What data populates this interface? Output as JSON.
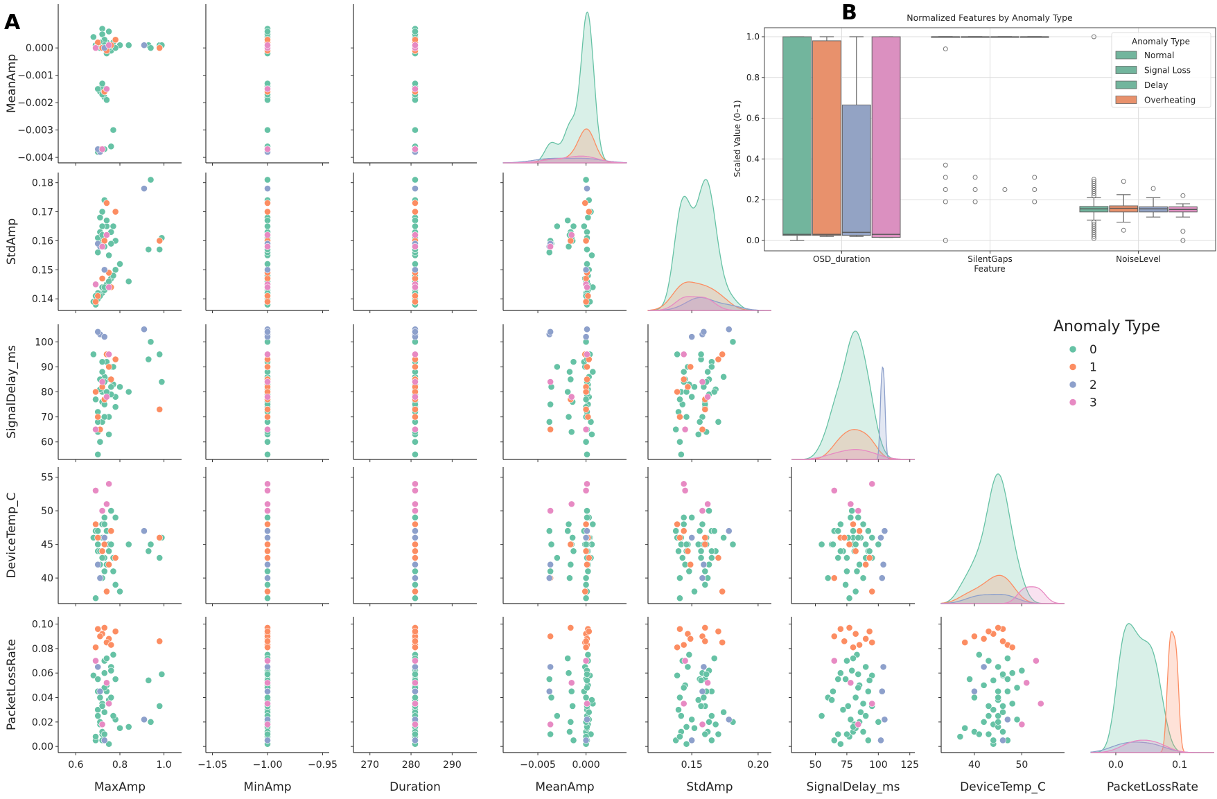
{
  "chart_data": [
    {
      "type": "scatter",
      "panel_label": "A",
      "kind": "pairplot (lower triangle, KDE on diagonal)",
      "x_variables": [
        "MaxAmp",
        "MinAmp",
        "Duration",
        "MeanAmp",
        "StdAmp",
        "SignalDelay_ms",
        "DeviceTemp_C",
        "PacketLossRate"
      ],
      "y_variables": [
        "MeanAmp",
        "StdAmp",
        "SignalDelay_ms",
        "DeviceTemp_C",
        "PacketLossRate"
      ],
      "legend": {
        "title": "Anomaly Type",
        "levels": [
          "0",
          "1",
          "2",
          "3"
        ],
        "placement": "right"
      },
      "colors": {
        "0": "#66c2a5",
        "1": "#fc8d62",
        "2": "#8da0cb",
        "3": "#e78ac3"
      },
      "axes": {
        "MaxAmp": {
          "lim": [
            0.52,
            1.08
          ],
          "ticks": [
            0.6,
            0.8,
            1.0
          ],
          "tick_labels": [
            "0.6",
            "0.8",
            "1.0"
          ]
        },
        "MinAmp": {
          "lim": [
            -1.056,
            -0.944
          ],
          "ticks": [
            -1.05,
            -1.0,
            -0.95
          ],
          "tick_labels": [
            "−1.05",
            "−1.00",
            "−0.95"
          ]
        },
        "Duration": {
          "lim": [
            266,
            296
          ],
          "ticks": [
            270,
            280,
            290
          ],
          "tick_labels": [
            "270",
            "280",
            "290"
          ]
        },
        "MeanAmp": {
          "lim": [
            -0.0086,
            0.0042
          ],
          "ylim": [
            -0.0042,
            0.0016
          ],
          "ticks": [
            -0.005,
            0.0
          ],
          "tick_labels": [
            "−0.005",
            "0.000"
          ],
          "yticks": [
            0.0,
            -0.001,
            -0.002,
            -0.003,
            -0.004
          ],
          "ytick_labels": [
            "0.000",
            "−0.001",
            "−0.002",
            "−0.003",
            "−0.004"
          ]
        },
        "StdAmp": {
          "lim": [
            0.117,
            0.21
          ],
          "ylim": [
            0.136,
            0.1835
          ],
          "ticks": [
            0.15,
            0.2
          ],
          "tick_labels": [
            "0.15",
            "0.20"
          ],
          "yticks": [
            0.14,
            0.15,
            0.16,
            0.17,
            0.18
          ],
          "ytick_labels": [
            "0.14",
            "0.15",
            "0.16",
            "0.17",
            "0.18"
          ]
        },
        "SignalDelay_ms": {
          "lim": [
            31,
            129
          ],
          "ylim": [
            53,
            107
          ],
          "ticks": [
            50,
            75,
            100,
            125
          ],
          "tick_labels": [
            "50",
            "75",
            "100",
            "125"
          ],
          "yticks": [
            60,
            70,
            80,
            90,
            100
          ],
          "ytick_labels": [
            "60",
            "70",
            "80",
            "90",
            "100"
          ]
        },
        "DeviceTemp_C": {
          "lim": [
            33,
            59
          ],
          "ylim": [
            36.2,
            56.5
          ],
          "ticks": [
            40,
            50
          ],
          "tick_labels": [
            "40",
            "50"
          ],
          "yticks": [
            40,
            45,
            50,
            55
          ],
          "ytick_labels": [
            "40",
            "45",
            "50",
            "55"
          ]
        },
        "PacketLossRate": {
          "lim": [
            -0.039,
            0.154
          ],
          "ylim": [
            -0.005,
            0.106
          ],
          "ticks": [
            0.0,
            0.1
          ],
          "tick_labels": [
            "0.0",
            "0.1"
          ],
          "yticks": [
            0.0,
            0.02,
            0.04,
            0.06,
            0.08,
            0.1
          ],
          "ytick_labels": [
            "0.00",
            "0.02",
            "0.04",
            "0.06",
            "0.08",
            "0.10"
          ]
        }
      },
      "columns": [
        "MaxAmp",
        "MinAmp",
        "Duration",
        "MeanAmp",
        "StdAmp",
        "SignalDelay_ms",
        "DeviceTemp_C",
        "PacketLossRate",
        "AnomalyType"
      ],
      "rows": [
        [
          0.7,
          -1,
          281,
          0.0001,
          0.14,
          72,
          44,
          0.03,
          0
        ],
        [
          0.72,
          -1,
          281,
          0.0,
          0.142,
          80,
          46,
          0.012,
          0
        ],
        [
          0.74,
          -1,
          281,
          0.0002,
          0.145,
          85,
          42,
          0.05,
          0
        ],
        [
          0.69,
          -1,
          281,
          0.0001,
          0.138,
          65,
          47,
          0.005,
          0
        ],
        [
          0.76,
          -1,
          281,
          -0.0001,
          0.147,
          90,
          45,
          0.065,
          0
        ],
        [
          0.78,
          -1,
          281,
          0.0003,
          0.15,
          78,
          49,
          0.022,
          0
        ],
        [
          0.71,
          -1,
          281,
          0.0,
          0.141,
          60,
          40,
          0.04,
          0
        ],
        [
          0.73,
          -1,
          281,
          0.0002,
          0.143,
          75,
          43,
          0.07,
          0
        ],
        [
          0.8,
          -1,
          281,
          0.0001,
          0.152,
          82,
          38,
          0.015,
          0
        ],
        [
          0.68,
          -1,
          281,
          0.0004,
          0.139,
          95,
          46,
          0.058,
          0
        ],
        [
          0.75,
          -1,
          281,
          0.0,
          0.146,
          70,
          44,
          0.002,
          0
        ],
        [
          0.72,
          -1,
          281,
          0.0007,
          0.144,
          88,
          48,
          0.035,
          0
        ],
        [
          0.7,
          -1,
          281,
          0.0001,
          0.142,
          55,
          45,
          0.025,
          0
        ],
        [
          0.77,
          -1,
          281,
          0.0002,
          0.148,
          83,
          41,
          0.075,
          0
        ],
        [
          0.74,
          -1,
          281,
          -0.0002,
          0.165,
          92,
          47,
          0.045,
          0
        ],
        [
          0.72,
          -1,
          281,
          0.0005,
          0.17,
          68,
          43,
          0.01,
          0
        ],
        [
          0.76,
          -1,
          281,
          0.0001,
          0.163,
          79,
          50,
          0.062,
          0
        ],
        [
          0.73,
          -1,
          281,
          0.0003,
          0.174,
          86,
          46,
          0.028,
          0
        ],
        [
          0.78,
          -1,
          281,
          0.0,
          0.16,
          74,
          39,
          0.055,
          0
        ],
        [
          0.71,
          -1,
          281,
          0.0002,
          0.168,
          81,
          44,
          0.018,
          0
        ],
        [
          0.75,
          -1,
          281,
          0.0006,
          0.155,
          63,
          45,
          0.038,
          0
        ],
        [
          0.84,
          -1,
          281,
          0.0001,
          0.146,
          80,
          45,
          0.016,
          0
        ],
        [
          0.69,
          -1,
          281,
          0.0,
          0.141,
          77,
          37,
          0.008,
          0
        ],
        [
          0.73,
          -1,
          281,
          0.0001,
          0.144,
          84,
          49,
          0.048,
          0
        ],
        [
          0.72,
          -1,
          281,
          -0.0014,
          0.16,
          76,
          46,
          0.033,
          0
        ],
        [
          0.71,
          -1,
          281,
          -0.0016,
          0.163,
          85,
          42,
          0.02,
          0
        ],
        [
          0.73,
          -1,
          281,
          -0.0018,
          0.158,
          70,
          48,
          0.06,
          0
        ],
        [
          0.72,
          -1,
          281,
          -0.0013,
          0.165,
          92,
          44,
          0.005,
          0
        ],
        [
          0.7,
          -1,
          281,
          -0.0015,
          0.161,
          64,
          45,
          0.045,
          0
        ],
        [
          0.74,
          -1,
          281,
          -0.0019,
          0.167,
          80,
          47,
          0.072,
          0
        ],
        [
          0.72,
          -1,
          281,
          -0.0017,
          0.162,
          88,
          40,
          0.012,
          0
        ],
        [
          0.76,
          -1,
          281,
          -0.0036,
          0.159,
          82,
          45,
          0.04,
          0
        ],
        [
          0.77,
          -1,
          281,
          -0.003,
          0.165,
          90,
          43,
          0.025,
          0
        ],
        [
          0.7,
          -1,
          281,
          -0.0038,
          0.156,
          68,
          47,
          0.055,
          0
        ],
        [
          0.73,
          -1,
          281,
          -0.0037,
          0.16,
          75,
          41,
          0.01,
          0
        ],
        [
          0.93,
          -1,
          281,
          0.0001,
          0.157,
          93,
          44,
          0.054,
          0
        ],
        [
          0.98,
          -1,
          281,
          0.0001,
          0.157,
          95,
          43,
          0.033,
          0
        ],
        [
          0.99,
          -1,
          281,
          0.0001,
          0.161,
          84,
          46,
          0.059,
          0
        ],
        [
          0.94,
          -1,
          281,
          0.0,
          0.181,
          100,
          45,
          0.02,
          0
        ],
        [
          0.72,
          -1,
          281,
          0.0,
          0.147,
          82,
          44,
          0.092,
          1
        ],
        [
          0.75,
          -1,
          281,
          0.0001,
          0.149,
          90,
          42,
          0.088,
          1
        ],
        [
          0.7,
          -1,
          281,
          0.0002,
          0.141,
          70,
          46,
          0.096,
          1
        ],
        [
          0.74,
          -1,
          281,
          -0.0001,
          0.173,
          95,
          38,
          0.085,
          1
        ],
        [
          0.73,
          -1,
          281,
          -0.0016,
          0.16,
          77,
          45,
          0.097,
          1
        ],
        [
          0.76,
          -1,
          281,
          0.0001,
          0.144,
          85,
          47,
          0.083,
          1
        ],
        [
          0.71,
          -1,
          281,
          -0.0037,
          0.158,
          65,
          40,
          0.09,
          1
        ],
        [
          0.98,
          -1,
          281,
          0.0,
          0.16,
          73,
          46,
          0.086,
          1
        ],
        [
          0.78,
          -1,
          281,
          0.0003,
          0.17,
          93,
          43,
          0.094,
          1
        ],
        [
          0.69,
          -1,
          281,
          0.0,
          0.139,
          80,
          48,
          0.081,
          1
        ],
        [
          0.71,
          -1,
          281,
          -0.0038,
          0.158,
          103,
          40,
          0.045,
          2
        ],
        [
          0.91,
          -1,
          281,
          0.0001,
          0.178,
          105,
          47,
          0.022,
          2
        ],
        [
          0.73,
          -1,
          281,
          0.0,
          0.15,
          102,
          46,
          0.005,
          2
        ],
        [
          0.7,
          -1,
          281,
          -0.0037,
          0.159,
          104,
          42,
          0.065,
          2
        ],
        [
          0.69,
          -1,
          281,
          0.0,
          0.145,
          65,
          53,
          0.07,
          3
        ],
        [
          0.74,
          -1,
          281,
          -0.0015,
          0.162,
          78,
          51,
          0.052,
          3
        ],
        [
          0.72,
          -1,
          281,
          -0.0037,
          0.158,
          84,
          50,
          0.018,
          3
        ],
        [
          0.75,
          -1,
          281,
          0.0001,
          0.144,
          95,
          54,
          0.035,
          3
        ]
      ]
    },
    {
      "type": "box",
      "panel_label": "B",
      "title": "Normalized Features by Anomaly Type",
      "xlabel": "Feature",
      "ylabel": "Scaled Value (0–1)",
      "ylim": [
        -0.05,
        1.05
      ],
      "yticks": [
        0.0,
        0.2,
        0.4,
        0.6,
        0.8,
        1.0
      ],
      "ytick_labels": [
        "0.0",
        "0.2",
        "0.4",
        "0.6",
        "0.8",
        "1.0"
      ],
      "grid": true,
      "categories": [
        "OSD_duration",
        "SilentGaps",
        "NoiseLevel"
      ],
      "legend": {
        "title": "Anomaly Type",
        "placement": "top-right",
        "entries": [
          {
            "label": "Normal",
            "color": "#72b59d"
          },
          {
            "label": "Signal Loss",
            "color": "#72b59d"
          },
          {
            "label": "Delay",
            "color": "#72b59d"
          },
          {
            "label": "Overheating",
            "color": "#e8916c"
          }
        ]
      },
      "series": [
        {
          "color": "#72b59d",
          "stats": [
            {
              "lo": 0.0,
              "q1": 0.025,
              "med": 0.03,
              "q3": 1.0,
              "hi": 1.0,
              "outliers": []
            },
            {
              "lo": 1.0,
              "q1": 1.0,
              "med": 1.0,
              "q3": 1.0,
              "hi": 1.0,
              "outliers": [
                0.94,
                0.37,
                0.31,
                0.25,
                0.19,
                0.0
              ]
            },
            {
              "lo": 0.1,
              "q1": 0.14,
              "med": 0.155,
              "q3": 0.167,
              "hi": 0.21,
              "outliers": [
                1.0,
                0.3,
                0.29,
                0.28,
                0.27,
                0.26,
                0.25,
                0.24,
                0.23,
                0.22,
                0.09,
                0.08,
                0.07,
                0.06,
                0.05,
                0.04,
                0.03,
                0.02,
                0.01
              ]
            }
          ]
        },
        {
          "color": "#e8916c",
          "stats": [
            {
              "lo": 0.02,
              "q1": 0.025,
              "med": 0.03,
              "q3": 0.98,
              "hi": 1.0,
              "outliers": []
            },
            {
              "lo": 1.0,
              "q1": 1.0,
              "med": 1.0,
              "q3": 1.0,
              "hi": 1.0,
              "outliers": [
                0.31,
                0.25,
                0.19
              ]
            },
            {
              "lo": 0.09,
              "q1": 0.14,
              "med": 0.158,
              "q3": 0.17,
              "hi": 0.225,
              "outliers": [
                0.29,
                0.05
              ]
            }
          ]
        },
        {
          "color": "#93a3c4",
          "stats": [
            {
              "lo": 0.02,
              "q1": 0.025,
              "med": 0.04,
              "q3": 0.665,
              "hi": 1.0,
              "outliers": []
            },
            {
              "lo": 1.0,
              "q1": 1.0,
              "med": 1.0,
              "q3": 1.0,
              "hi": 1.0,
              "outliers": [
                0.25
              ]
            },
            {
              "lo": 0.115,
              "q1": 0.14,
              "med": 0.155,
              "q3": 0.165,
              "hi": 0.21,
              "outliers": [
                0.255
              ]
            }
          ]
        },
        {
          "color": "#db90c0",
          "stats": [
            {
              "lo": 0.015,
              "q1": 0.015,
              "med": 0.03,
              "q3": 1.0,
              "hi": 1.0,
              "outliers": []
            },
            {
              "lo": 1.0,
              "q1": 1.0,
              "med": 1.0,
              "q3": 1.0,
              "hi": 1.0,
              "outliers": [
                0.31,
                0.25,
                0.19
              ]
            },
            {
              "lo": 0.115,
              "q1": 0.14,
              "med": 0.152,
              "q3": 0.165,
              "hi": 0.18,
              "outliers": [
                0.22,
                0.045,
                0.0
              ]
            }
          ]
        }
      ]
    }
  ]
}
